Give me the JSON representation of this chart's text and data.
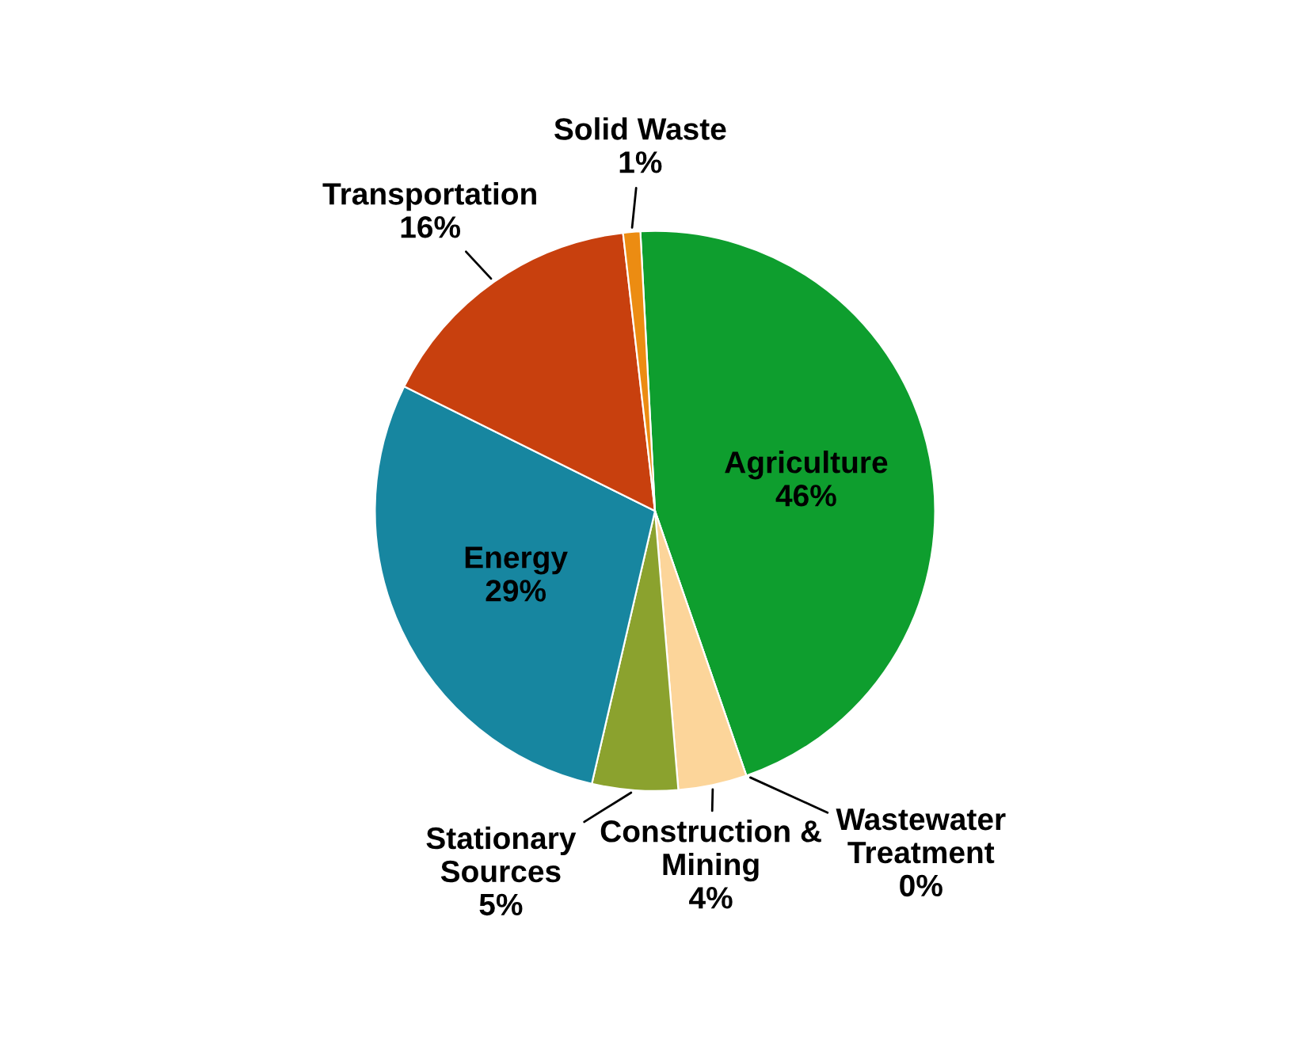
{
  "chart_data": {
    "type": "pie",
    "categories": [
      "Agriculture",
      "Wastewater\nTreatment",
      "Construction &\nMining",
      "Stationary\nSources",
      "Energy",
      "Transportation",
      "Solid Waste"
    ],
    "values": [
      46,
      0,
      4,
      5,
      29,
      16,
      1
    ],
    "value_labels": [
      "46%",
      "0%",
      "4%",
      "5%",
      "29%",
      "16%",
      "1%"
    ],
    "colors": [
      "#0e9e2e",
      "#6b5a3e",
      "#fcd59a",
      "#8ba22e",
      "#1786a0",
      "#c8400e",
      "#ec8c12"
    ]
  }
}
